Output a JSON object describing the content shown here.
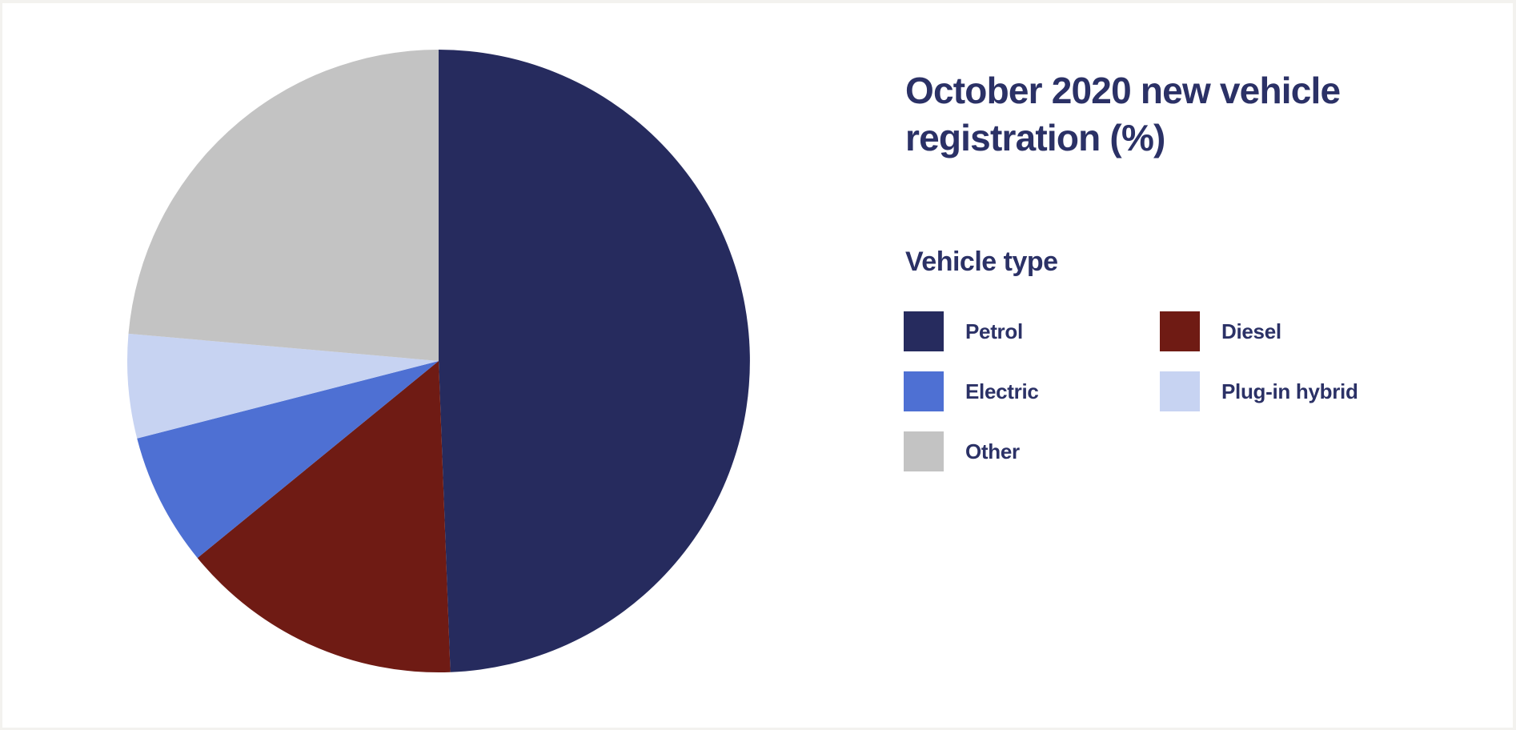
{
  "header": {
    "title": "October 2020 new vehicle registration (%)"
  },
  "legend": {
    "title": "Vehicle type",
    "items": [
      {
        "label": "Petrol",
        "color": "#262B5E"
      },
      {
        "label": "Diesel",
        "color": "#6F1B14"
      },
      {
        "label": "Electric",
        "color": "#4E70D3"
      },
      {
        "label": "Plug-in hybrid",
        "color": "#C7D3F2"
      },
      {
        "label": "Other",
        "color": "#C3C3C3"
      }
    ]
  },
  "chart_data": {
    "type": "pie",
    "title": "October 2020 new vehicle registration (%)",
    "categories": [
      "Petrol",
      "Diesel",
      "Electric",
      "Plug-in hybrid",
      "Other"
    ],
    "values": [
      49.4,
      14.7,
      6.9,
      5.4,
      23.6
    ],
    "unit": "%",
    "colors": [
      "#262B5E",
      "#6F1B14",
      "#4E70D3",
      "#C7D3F2",
      "#C3C3C3"
    ],
    "start_angle_deg": 0,
    "direction": "clockwise",
    "legend_title": "Vehicle type",
    "legend_position": "right",
    "data_labels": false
  },
  "colors": {
    "text": "#2B3166",
    "frame": "#F3F2EF",
    "card": "#FFFFFF"
  }
}
